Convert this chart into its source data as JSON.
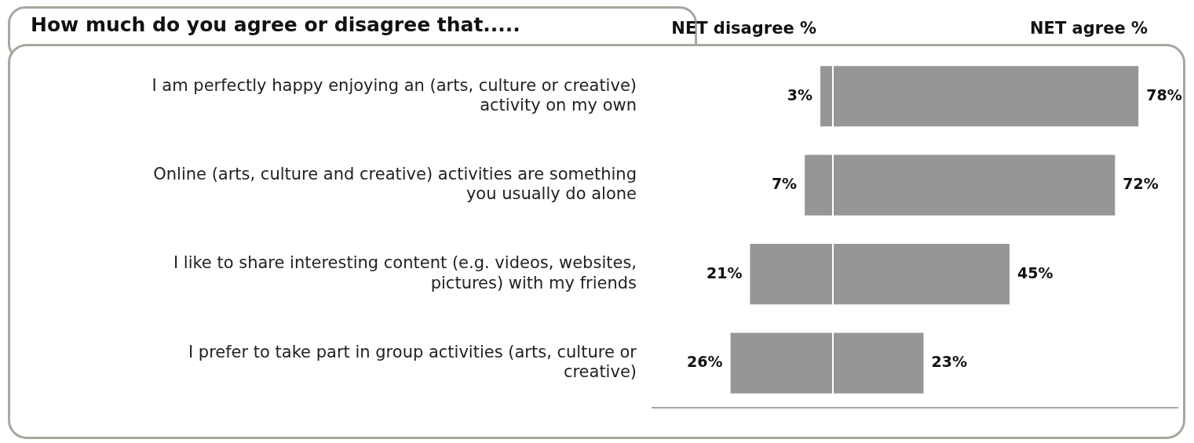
{
  "chart_data": [
    {
      "type": "bar",
      "orientation": "horizontal",
      "title": "How much do you agree or disagree that.....",
      "categories": [
        "I am perfectly happy enjoying an (arts, culture or creative) activity on my own",
        "Online (arts, culture and creative) activities are something you usually do alone",
        "I like to share interesting content (e.g. videos, websites, pictures) with my friends",
        "I prefer to take part in group activities (arts, culture or creative)"
      ],
      "series": [
        {
          "name": "NET disagree %",
          "color": "#969696",
          "values": [
            3,
            7,
            21,
            26
          ],
          "value_labels": [
            "3%",
            "7%",
            "21%",
            "26%"
          ]
        }
      ],
      "xlim": [
        46,
        0
      ],
      "tick_labels": "y",
      "grid": false,
      "legend": false
    },
    {
      "type": "bar",
      "orientation": "horizontal",
      "series": [
        {
          "name": "NET agree %",
          "color": "#969696",
          "values": [
            78,
            72,
            45,
            23
          ],
          "value_labels": [
            "78%",
            "72%",
            "45%",
            "23%"
          ]
        }
      ],
      "xlim": [
        0,
        88
      ],
      "tick_labels": false,
      "grid": false,
      "legend": false
    }
  ]
}
